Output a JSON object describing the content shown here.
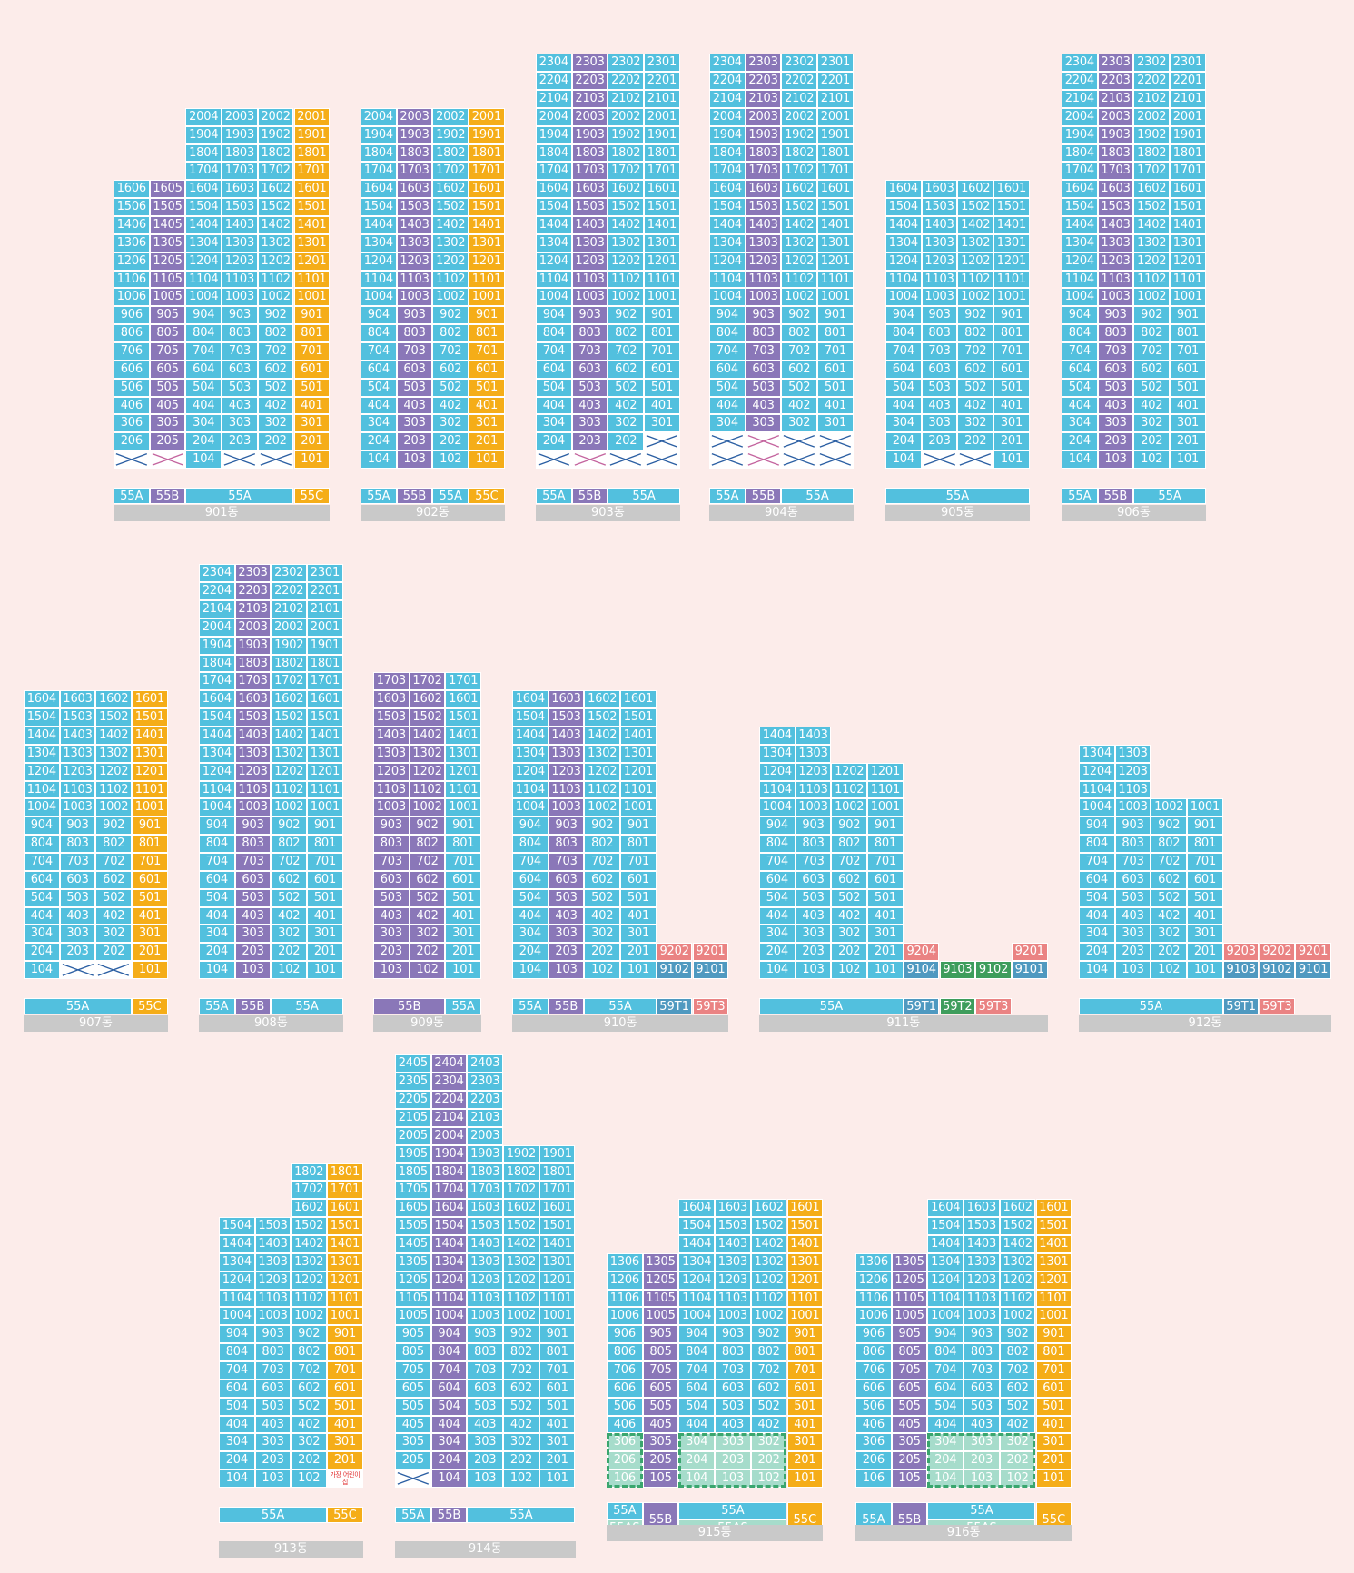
{
  "colors": {
    "55A": "#52c0de",
    "55B": "#8a77b8",
    "55C": "#f5ad18",
    "55AS": "#a6dccb",
    "59T1": "#4f99c0",
    "59T2": "#3e9d5c",
    "59T3": "#ea8383",
    "empty": "#ffffff",
    "cross": "#2b5fa3",
    "cross_purple": "#c4659f",
    "name_bar": "#c9c9c9",
    "highlight": "#3aa66e",
    "background": "#fcecea"
  },
  "note_text": "가장 어린이집",
  "buildings": [
    {
      "name": "901동",
      "cols": [
        {
          "type": "55A",
          "min": 2,
          "max": 16,
          "empty": [
            1
          ]
        },
        {
          "type": "55B",
          "min": 2,
          "max": 16,
          "empty": [
            1
          ],
          "cross": "purple"
        },
        {
          "type": "55A",
          "min": 1,
          "max": 20,
          "empty": []
        },
        {
          "type": "55A",
          "min": 2,
          "max": 20,
          "empty": [
            1
          ]
        },
        {
          "type": "55A",
          "min": 2,
          "max": 20,
          "empty": [
            1
          ]
        },
        {
          "type": "55C",
          "min": 1,
          "max": 20,
          "empty": []
        }
      ],
      "col_units": [
        "06",
        "05",
        "04",
        "03",
        "02",
        "01"
      ],
      "tags": [
        {
          "label": "55A",
          "type": "55A"
        },
        {
          "label": "55B",
          "type": "55B"
        },
        {
          "label": "55A",
          "type": "55A",
          "span": 3
        },
        {
          "label": "55C",
          "type": "55C"
        }
      ]
    },
    {
      "name": "902동",
      "cols": [
        {
          "type": "55A",
          "min": 1,
          "max": 20
        },
        {
          "type": "55B",
          "min": 1,
          "max": 20
        },
        {
          "type": "55A",
          "min": 1,
          "max": 20
        },
        {
          "type": "55C",
          "min": 1,
          "max": 20
        }
      ],
      "col_units": [
        "04",
        "03",
        "02",
        "01"
      ],
      "tags": [
        {
          "label": "55A",
          "type": "55A"
        },
        {
          "label": "55B",
          "type": "55B"
        },
        {
          "label": "55A",
          "type": "55A"
        },
        {
          "label": "55C",
          "type": "55C"
        }
      ]
    },
    {
      "name": "903동",
      "cols": [
        {
          "type": "55A",
          "min": 2,
          "max": 23,
          "empty": [
            1
          ]
        },
        {
          "type": "55B",
          "min": 2,
          "max": 23,
          "empty": [
            1
          ],
          "cross": "purple"
        },
        {
          "type": "55A",
          "min": 2,
          "max": 23,
          "empty": [
            1
          ]
        },
        {
          "type": "55A",
          "min": 3,
          "max": 23,
          "empty": [
            1,
            2
          ]
        }
      ],
      "col_units": [
        "04",
        "03",
        "02",
        "01"
      ],
      "tags": [
        {
          "label": "55A",
          "type": "55A"
        },
        {
          "label": "55B",
          "type": "55B"
        },
        {
          "label": "55A",
          "type": "55A",
          "span": 2
        }
      ]
    },
    {
      "name": "904동",
      "cols": [
        {
          "type": "55A",
          "min": 3,
          "max": 23,
          "empty": [
            1,
            2
          ]
        },
        {
          "type": "55B",
          "min": 3,
          "max": 23,
          "empty": [
            1,
            2
          ],
          "cross": "purple"
        },
        {
          "type": "55A",
          "min": 3,
          "max": 23,
          "empty": [
            1,
            2
          ]
        },
        {
          "type": "55A",
          "min": 3,
          "max": 23,
          "empty": [
            1,
            2
          ]
        }
      ],
      "col_units": [
        "04",
        "03",
        "02",
        "01"
      ],
      "tags": [
        {
          "label": "55A",
          "type": "55A"
        },
        {
          "label": "55B",
          "type": "55B"
        },
        {
          "label": "55A",
          "type": "55A",
          "span": 2
        }
      ]
    },
    {
      "name": "905동",
      "cols": [
        {
          "type": "55A",
          "min": 1,
          "max": 16
        },
        {
          "type": "55A",
          "min": 2,
          "max": 16,
          "empty": [
            1
          ]
        },
        {
          "type": "55A",
          "min": 2,
          "max": 16,
          "empty": [
            1
          ]
        },
        {
          "type": "55A",
          "min": 1,
          "max": 16
        }
      ],
      "col_units": [
        "04",
        "03",
        "02",
        "01"
      ],
      "tags": [
        {
          "label": "55A",
          "type": "55A",
          "span": 4
        }
      ]
    },
    {
      "name": "906동",
      "cols": [
        {
          "type": "55A",
          "min": 1,
          "max": 23
        },
        {
          "type": "55B",
          "min": 1,
          "max": 23
        },
        {
          "type": "55A",
          "min": 1,
          "max": 23
        },
        {
          "type": "55A",
          "min": 1,
          "max": 23
        }
      ],
      "col_units": [
        "04",
        "03",
        "02",
        "01"
      ],
      "tags": [
        {
          "label": "55A",
          "type": "55A"
        },
        {
          "label": "55B",
          "type": "55B"
        },
        {
          "label": "55A",
          "type": "55A",
          "span": 2
        }
      ]
    },
    {
      "name": "907동",
      "cols": [
        {
          "type": "55A",
          "min": 1,
          "max": 16
        },
        {
          "type": "55A",
          "min": 2,
          "max": 16,
          "empty": [
            1
          ]
        },
        {
          "type": "55A",
          "min": 2,
          "max": 16,
          "empty": [
            1
          ]
        },
        {
          "type": "55C",
          "min": 1,
          "max": 16
        }
      ],
      "col_units": [
        "04",
        "03",
        "02",
        "01"
      ],
      "tags": [
        {
          "label": "55A",
          "type": "55A",
          "span": 3
        },
        {
          "label": "55C",
          "type": "55C"
        }
      ]
    },
    {
      "name": "908동",
      "cols": [
        {
          "type": "55A",
          "min": 1,
          "max": 23
        },
        {
          "type": "55B",
          "min": 1,
          "max": 23
        },
        {
          "type": "55A",
          "min": 1,
          "max": 23
        },
        {
          "type": "55A",
          "min": 1,
          "max": 23
        }
      ],
      "col_units": [
        "04",
        "03",
        "02",
        "01"
      ],
      "tags": [
        {
          "label": "55A",
          "type": "55A"
        },
        {
          "label": "55B",
          "type": "55B"
        },
        {
          "label": "55A",
          "type": "55A",
          "span": 2
        }
      ]
    },
    {
      "name": "909동",
      "cols": [
        {
          "type": "55B",
          "min": 1,
          "max": 17
        },
        {
          "type": "55B",
          "min": 1,
          "max": 17
        },
        {
          "type": "55A",
          "min": 1,
          "max": 17
        }
      ],
      "col_units": [
        "03",
        "02",
        "01"
      ],
      "tags": [
        {
          "label": "55B",
          "type": "55B",
          "span": 2
        },
        {
          "label": "55A",
          "type": "55A"
        }
      ]
    },
    {
      "name": "910동",
      "cols": [
        {
          "type": "55A",
          "min": 1,
          "max": 16
        },
        {
          "type": "55B",
          "min": 1,
          "max": 16
        },
        {
          "type": "55A",
          "min": 1,
          "max": 16
        },
        {
          "type": "55A",
          "min": 1,
          "max": 16
        },
        {
          "type": "59T",
          "units": [
            {
              "label": "9202",
              "type": "59T3"
            },
            {
              "label": "9102",
              "type": "59T1"
            }
          ]
        },
        {
          "type": "59T",
          "units": [
            {
              "label": "9201",
              "type": "59T3"
            },
            {
              "label": "9101",
              "type": "59T1"
            }
          ]
        }
      ],
      "col_units": [
        "04",
        "03",
        "02",
        "01",
        "",
        ""
      ],
      "tags": [
        {
          "label": "55A",
          "type": "55A"
        },
        {
          "label": "55B",
          "type": "55B"
        },
        {
          "label": "55A",
          "type": "55A",
          "span": 2
        },
        {
          "label": "59T1",
          "type": "59T1"
        },
        {
          "label": "59T3",
          "type": "59T3"
        }
      ]
    },
    {
      "name": "911동",
      "cols": [
        {
          "type": "55A",
          "min": 1,
          "max": 14
        },
        {
          "type": "55A",
          "min": 1,
          "max": 14
        },
        {
          "type": "55A",
          "min": 1,
          "max": 12
        },
        {
          "type": "55A",
          "min": 1,
          "max": 12
        },
        {
          "type": "59T",
          "units": [
            {
              "label": "9204",
              "type": "59T3"
            },
            {
              "label": "9104",
              "type": "59T1"
            }
          ]
        },
        {
          "type": "59T",
          "units": [
            {
              "label": "",
              "type": "none"
            },
            {
              "label": "9103",
              "type": "59T2"
            }
          ]
        },
        {
          "type": "59T",
          "units": [
            {
              "label": "",
              "type": "none"
            },
            {
              "label": "9102",
              "type": "59T2"
            }
          ]
        },
        {
          "type": "59T",
          "units": [
            {
              "label": "9201",
              "type": "59T3"
            },
            {
              "label": "9101",
              "type": "59T1"
            }
          ]
        }
      ],
      "col_units": [
        "04",
        "03",
        "02",
        "01",
        "",
        "",
        "",
        ""
      ],
      "tags": [
        {
          "label": "55A",
          "type": "55A",
          "span": 4
        },
        {
          "label": "59T1",
          "type": "59T1"
        },
        {
          "label": "59T2",
          "type": "59T2"
        },
        {
          "label": "59T3",
          "type": "59T3"
        },
        {
          "label": "",
          "type": "none"
        }
      ]
    },
    {
      "name": "912동",
      "cols": [
        {
          "type": "55A",
          "min": 1,
          "max": 13
        },
        {
          "type": "55A",
          "min": 1,
          "max": 13
        },
        {
          "type": "55A",
          "min": 1,
          "max": 10
        },
        {
          "type": "55A",
          "min": 1,
          "max": 10
        },
        {
          "type": "59T",
          "units": [
            {
              "label": "9203",
              "type": "59T3"
            },
            {
              "label": "9103",
              "type": "59T1"
            }
          ]
        },
        {
          "type": "59T",
          "units": [
            {
              "label": "9202",
              "type": "59T3"
            },
            {
              "label": "9102",
              "type": "59T1"
            }
          ]
        },
        {
          "type": "59T",
          "units": [
            {
              "label": "9201",
              "type": "59T3"
            },
            {
              "label": "9101",
              "type": "59T1"
            }
          ]
        }
      ],
      "col_units": [
        "04",
        "03",
        "02",
        "01",
        "",
        "",
        ""
      ],
      "tags": [
        {
          "label": "55A",
          "type": "55A",
          "span": 4
        },
        {
          "label": "59T1",
          "type": "59T1"
        },
        {
          "label": "59T3",
          "type": "59T3"
        },
        {
          "label": "",
          "type": "none"
        }
      ]
    },
    {
      "name": "913동",
      "cols": [
        {
          "type": "55A",
          "min": 1,
          "max": 15
        },
        {
          "type": "55A",
          "min": 1,
          "max": 15
        },
        {
          "type": "55A",
          "min": 1,
          "max": 18
        },
        {
          "type": "55C",
          "min": 2,
          "max": 18,
          "note": true
        }
      ],
      "col_units": [
        "04",
        "03",
        "02",
        "01"
      ],
      "tags": [
        {
          "label": "55A",
          "type": "55A",
          "span": 3
        },
        {
          "label": "55C",
          "type": "55C"
        }
      ]
    },
    {
      "name": "914동",
      "cols": [
        {
          "type": "55A",
          "min": 2,
          "max": 24,
          "empty": [
            1
          ]
        },
        {
          "type": "55B",
          "min": 1,
          "max": 24
        },
        {
          "type": "55A",
          "min": 1,
          "max": 24
        },
        {
          "type": "55A",
          "min": 1,
          "max": 19
        },
        {
          "type": "55A",
          "min": 1,
          "max": 19
        }
      ],
      "col_units": [
        "05",
        "04",
        "03",
        "02",
        "01"
      ],
      "tags": [
        {
          "label": "55A",
          "type": "55A"
        },
        {
          "label": "55B",
          "type": "55B"
        },
        {
          "label": "55A",
          "type": "55A",
          "span": 3
        }
      ]
    },
    {
      "name": "915동",
      "cols": [
        {
          "type": "55A",
          "min": 1,
          "max": 13,
          "as_until": 3
        },
        {
          "type": "55B",
          "min": 1,
          "max": 13
        },
        {
          "type": "55A",
          "min": 1,
          "max": 16,
          "as_until": 3
        },
        {
          "type": "55A",
          "min": 1,
          "max": 16,
          "as_until": 3
        },
        {
          "type": "55A",
          "min": 1,
          "max": 16,
          "as_until": 3
        },
        {
          "type": "55C",
          "min": 1,
          "max": 16
        }
      ],
      "col_units": [
        "06",
        "05",
        "04",
        "03",
        "02",
        "01"
      ],
      "tags": [
        {
          "label": "55A",
          "type": "55A",
          "split": "55AS"
        },
        {
          "label": "55B",
          "type": "55B"
        },
        {
          "label": "55A",
          "type": "55A",
          "span": 3,
          "split": "55AS"
        },
        {
          "label": "55C",
          "type": "55C"
        }
      ]
    },
    {
      "name": "916동",
      "cols": [
        {
          "type": "55A",
          "min": 1,
          "max": 13
        },
        {
          "type": "55B",
          "min": 1,
          "max": 13
        },
        {
          "type": "55A",
          "min": 1,
          "max": 16,
          "as_until": 3
        },
        {
          "type": "55A",
          "min": 1,
          "max": 16,
          "as_until": 3
        },
        {
          "type": "55A",
          "min": 1,
          "max": 16,
          "as_until": 3
        },
        {
          "type": "55C",
          "min": 1,
          "max": 16
        }
      ],
      "col_units": [
        "06",
        "05",
        "04",
        "03",
        "02",
        "01"
      ],
      "tags": [
        {
          "label": "55A",
          "type": "55A"
        },
        {
          "label": "55B",
          "type": "55B"
        },
        {
          "label": "55A",
          "type": "55A",
          "span": 3,
          "split": "55AS"
        },
        {
          "label": "55C",
          "type": "55C"
        }
      ]
    }
  ]
}
